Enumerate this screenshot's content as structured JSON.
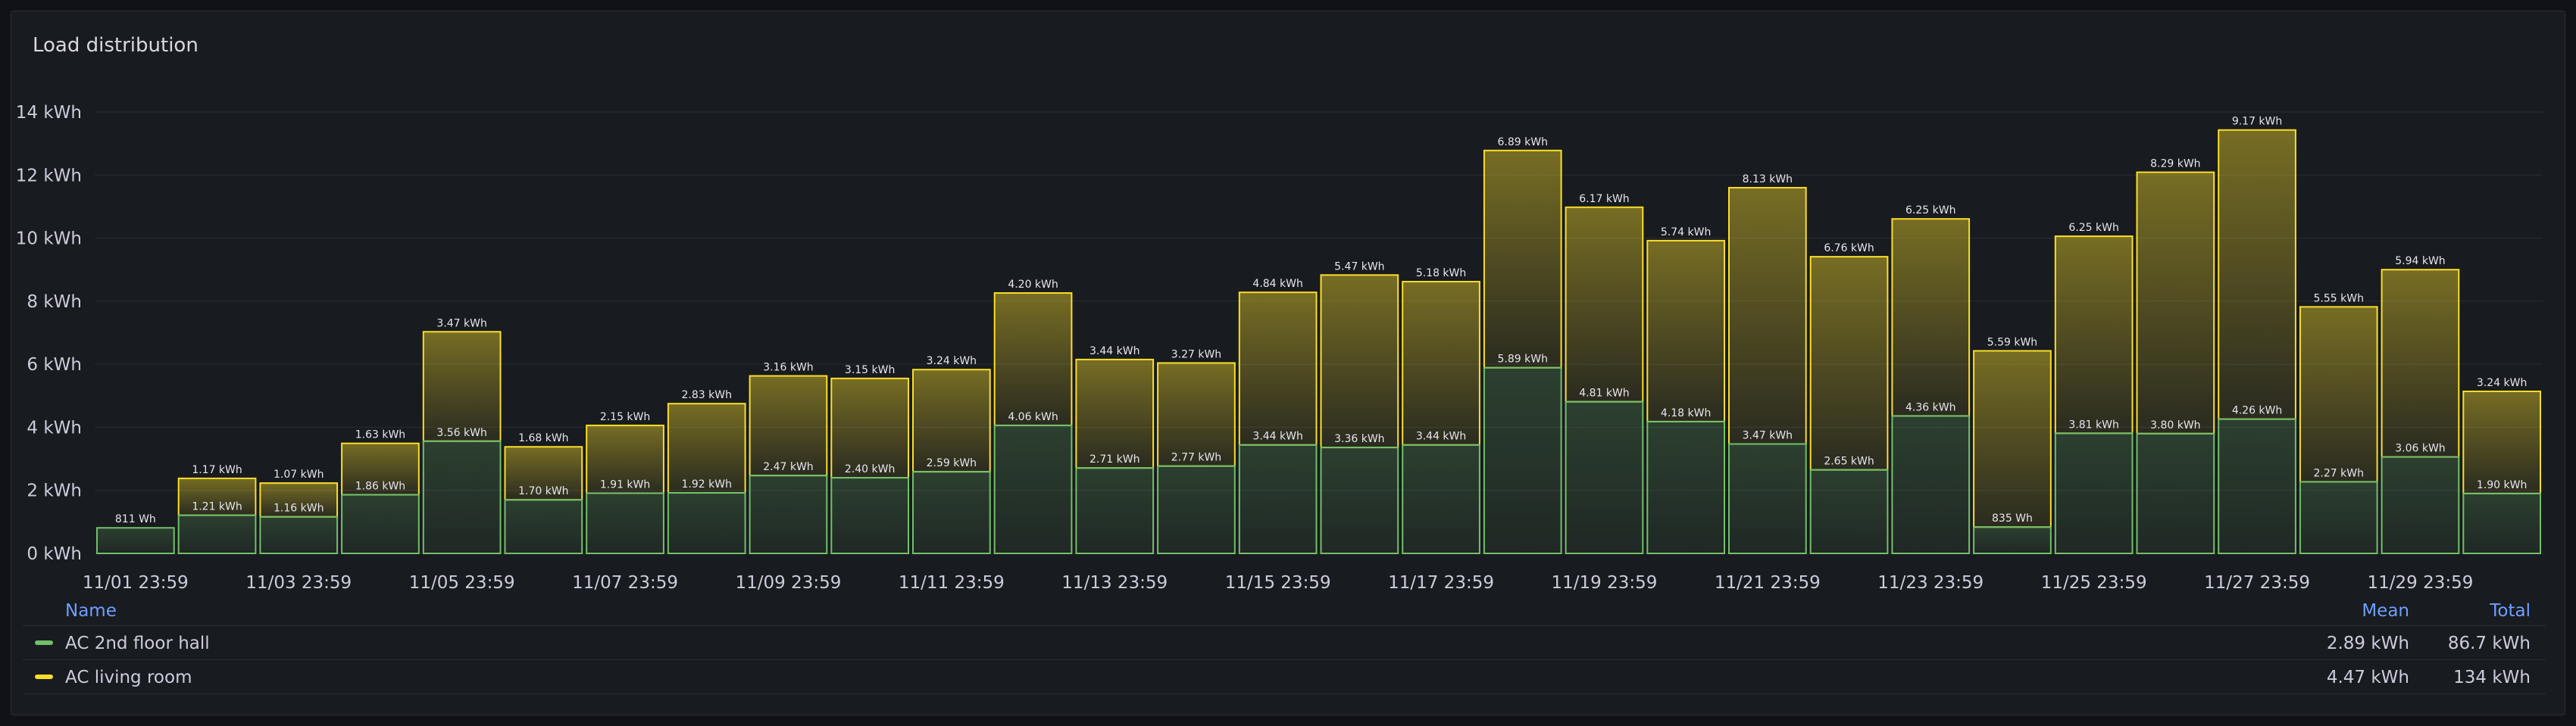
{
  "panel": {
    "title": "Load distribution"
  },
  "colors": {
    "green": "#73bf69",
    "yellow": "#fade2a",
    "background": "#181b1f",
    "grid": "#2a2d33",
    "text": "#ccccdc"
  },
  "chart_data": {
    "type": "bar",
    "stacked": true,
    "ylim": [
      0,
      14
    ],
    "yticks": [
      "0 kWh",
      "2 kWh",
      "4 kWh",
      "6 kWh",
      "8 kWh",
      "10 kWh",
      "12 kWh",
      "14 kWh"
    ],
    "xtick_labels": [
      "11/01 23:59",
      "11/03 23:59",
      "11/05 23:59",
      "11/07 23:59",
      "11/09 23:59",
      "11/11 23:59",
      "11/13 23:59",
      "11/15 23:59",
      "11/17 23:59",
      "11/19 23:59",
      "11/21 23:59",
      "11/23 23:59",
      "11/25 23:59",
      "11/27 23:59",
      "11/29 23:59"
    ],
    "categories": [
      "11/01 23:59",
      "11/02 23:59",
      "11/03 23:59",
      "11/04 23:59",
      "11/05 23:59",
      "11/06 23:59",
      "11/07 23:59",
      "11/08 23:59",
      "11/09 23:59",
      "11/10 23:59",
      "11/11 23:59",
      "11/12 23:59",
      "11/13 23:59",
      "11/14 23:59",
      "11/15 23:59",
      "11/16 23:59",
      "11/17 23:59",
      "11/18 23:59",
      "11/19 23:59",
      "11/20 23:59",
      "11/21 23:59",
      "11/22 23:59",
      "11/23 23:59",
      "11/24 23:59",
      "11/25 23:59",
      "11/26 23:59",
      "11/27 23:59",
      "11/28 23:59",
      "11/29 23:59",
      "11/30 23:59"
    ],
    "series": [
      {
        "name": "AC 2nd floor hall",
        "color": "#73bf69",
        "values": [
          0.811,
          1.21,
          1.16,
          1.86,
          3.56,
          1.7,
          1.91,
          1.92,
          2.47,
          2.4,
          2.59,
          4.06,
          2.71,
          2.77,
          3.44,
          3.36,
          3.44,
          5.89,
          4.81,
          4.18,
          3.47,
          2.65,
          4.36,
          0.835,
          3.81,
          3.8,
          4.26,
          2.27,
          3.06,
          1.9
        ],
        "labels": [
          "811 Wh",
          "1.21 kWh",
          "1.16 kWh",
          "1.86 kWh",
          "3.56 kWh",
          "1.70 kWh",
          "1.91 kWh",
          "1.92 kWh",
          "2.47 kWh",
          "2.40 kWh",
          "2.59 kWh",
          "4.06 kWh",
          "2.71 kWh",
          "2.77 kWh",
          "3.44 kWh",
          "3.36 kWh",
          "3.44 kWh",
          "5.89 kWh",
          "4.81 kWh",
          "4.18 kWh",
          "3.47 kWh",
          "2.65 kWh",
          "4.36 kWh",
          "835 Wh",
          "3.81 kWh",
          "3.80 kWh",
          "4.26 kWh",
          "2.27 kWh",
          "3.06 kWh",
          "1.90 kWh"
        ]
      },
      {
        "name": "AC living room",
        "color": "#fade2a",
        "values": [
          0,
          1.17,
          1.07,
          1.63,
          3.47,
          1.68,
          2.15,
          2.83,
          3.16,
          3.15,
          3.24,
          4.2,
          3.44,
          3.27,
          4.84,
          5.47,
          5.18,
          6.89,
          6.17,
          5.74,
          8.13,
          6.76,
          6.25,
          5.59,
          6.25,
          8.29,
          9.17,
          5.55,
          5.94,
          3.24
        ],
        "labels": [
          "",
          "1.17 kWh",
          "1.07 kWh",
          "1.63 kWh",
          "3.47 kWh",
          "1.68 kWh",
          "2.15 kWh",
          "2.83 kWh",
          "3.16 kWh",
          "3.15 kWh",
          "3.24 kWh",
          "4.20 kWh",
          "3.44 kWh",
          "3.27 kWh",
          "4.84 kWh",
          "5.47 kWh",
          "5.18 kWh",
          "6.89 kWh",
          "6.17 kWh",
          "5.74 kWh",
          "8.13 kWh",
          "6.76 kWh",
          "6.25 kWh",
          "5.59 kWh",
          "6.25 kWh",
          "8.29 kWh",
          "9.17 kWh",
          "5.55 kWh",
          "5.94 kWh",
          "3.24 kWh"
        ]
      }
    ]
  },
  "legend": {
    "headers": {
      "name": "Name",
      "mean": "Mean",
      "total": "Total"
    },
    "rows": [
      {
        "name": "AC 2nd floor hall",
        "mean": "2.89 kWh",
        "total": "86.7 kWh",
        "color": "#73bf69"
      },
      {
        "name": "AC living room",
        "mean": "4.47 kWh",
        "total": "134 kWh",
        "color": "#fade2a"
      }
    ]
  }
}
